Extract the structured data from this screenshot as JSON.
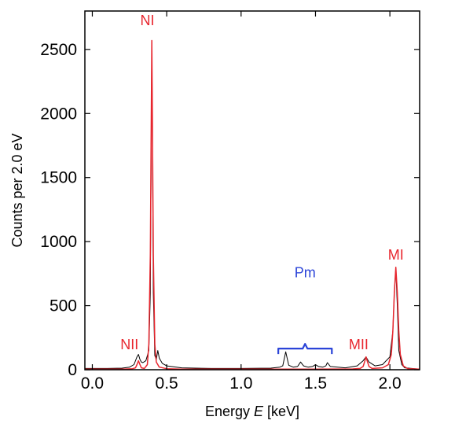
{
  "chart_data": {
    "type": "line",
    "xlabel": {
      "prefix": "Energy ",
      "symbol": "E",
      "unit": " [keV]"
    },
    "ylabel": "Counts per 2.0 eV",
    "xlim": [
      -0.05,
      2.2
    ],
    "ylim": [
      0,
      2800
    ],
    "x_ticks": [
      0.0,
      0.5,
      1.0,
      1.5,
      2.0
    ],
    "x_tick_labels": [
      "0.0",
      "0.5",
      "1.0",
      "1.5",
      "2.0"
    ],
    "y_ticks": [
      0,
      500,
      1000,
      1500,
      2000,
      2500
    ],
    "y_tick_labels": [
      "0",
      "500",
      "1000",
      "1500",
      "2000",
      "2500"
    ],
    "grid": false,
    "series": [
      {
        "color": "#000000",
        "x": [
          -0.05,
          0.0,
          0.1,
          0.2,
          0.25,
          0.28,
          0.3,
          0.31,
          0.32,
          0.33,
          0.34,
          0.36,
          0.38,
          0.39,
          0.4,
          0.41,
          0.42,
          0.43,
          0.44,
          0.45,
          0.47,
          0.5,
          0.6,
          0.8,
          1.0,
          1.2,
          1.26,
          1.28,
          1.3,
          1.32,
          1.35,
          1.38,
          1.4,
          1.42,
          1.45,
          1.48,
          1.5,
          1.52,
          1.55,
          1.57,
          1.58,
          1.6,
          1.7,
          1.78,
          1.82,
          1.84,
          1.86,
          1.9,
          1.95,
          2.0,
          2.02,
          2.03,
          2.04,
          2.05,
          2.06,
          2.08,
          2.1,
          2.2
        ],
        "y": [
          10,
          10,
          10,
          12,
          20,
          40,
          100,
          120,
          80,
          60,
          55,
          70,
          150,
          600,
          2560,
          600,
          110,
          80,
          150,
          90,
          50,
          30,
          15,
          10,
          10,
          12,
          20,
          30,
          140,
          35,
          20,
          25,
          60,
          30,
          20,
          25,
          40,
          25,
          20,
          30,
          55,
          25,
          15,
          30,
          70,
          100,
          60,
          30,
          40,
          100,
          300,
          600,
          790,
          500,
          150,
          40,
          15,
          5
        ]
      },
      {
        "color": "#e8262e",
        "x": [
          -0.05,
          0.0,
          0.2,
          0.27,
          0.29,
          0.3,
          0.31,
          0.32,
          0.33,
          0.35,
          0.37,
          0.38,
          0.39,
          0.395,
          0.4,
          0.405,
          0.41,
          0.42,
          0.43,
          0.45,
          0.5,
          0.6,
          1.0,
          1.5,
          1.75,
          1.8,
          1.82,
          1.83,
          1.84,
          1.85,
          1.86,
          1.88,
          1.95,
          1.99,
          2.01,
          2.02,
          2.03,
          2.04,
          2.05,
          2.06,
          2.07,
          2.09,
          2.12,
          2.2
        ],
        "y": [
          5,
          5,
          5,
          8,
          15,
          40,
          70,
          40,
          15,
          10,
          40,
          200,
          900,
          1800,
          2570,
          1800,
          900,
          200,
          60,
          20,
          8,
          5,
          5,
          5,
          6,
          10,
          25,
          60,
          100,
          60,
          25,
          10,
          15,
          40,
          120,
          300,
          600,
          800,
          600,
          300,
          120,
          30,
          8,
          5
        ]
      }
    ],
    "annotations": [
      {
        "text": "NI",
        "x": 0.37,
        "y": 2690,
        "color": "#e8262e"
      },
      {
        "text": "NII",
        "x": 0.25,
        "y": 160,
        "color": "#e8262e"
      },
      {
        "text": "MII",
        "x": 1.79,
        "y": 160,
        "color": "#e8262e"
      },
      {
        "text": "MI",
        "x": 2.04,
        "y": 860,
        "color": "#e8262e"
      },
      {
        "text": "Pm",
        "x": 1.43,
        "y": 720,
        "color": "#2b44d8"
      }
    ],
    "bracket": {
      "x_start": 1.25,
      "x_end": 1.61,
      "y": 165,
      "color": "#2b44d8"
    }
  }
}
